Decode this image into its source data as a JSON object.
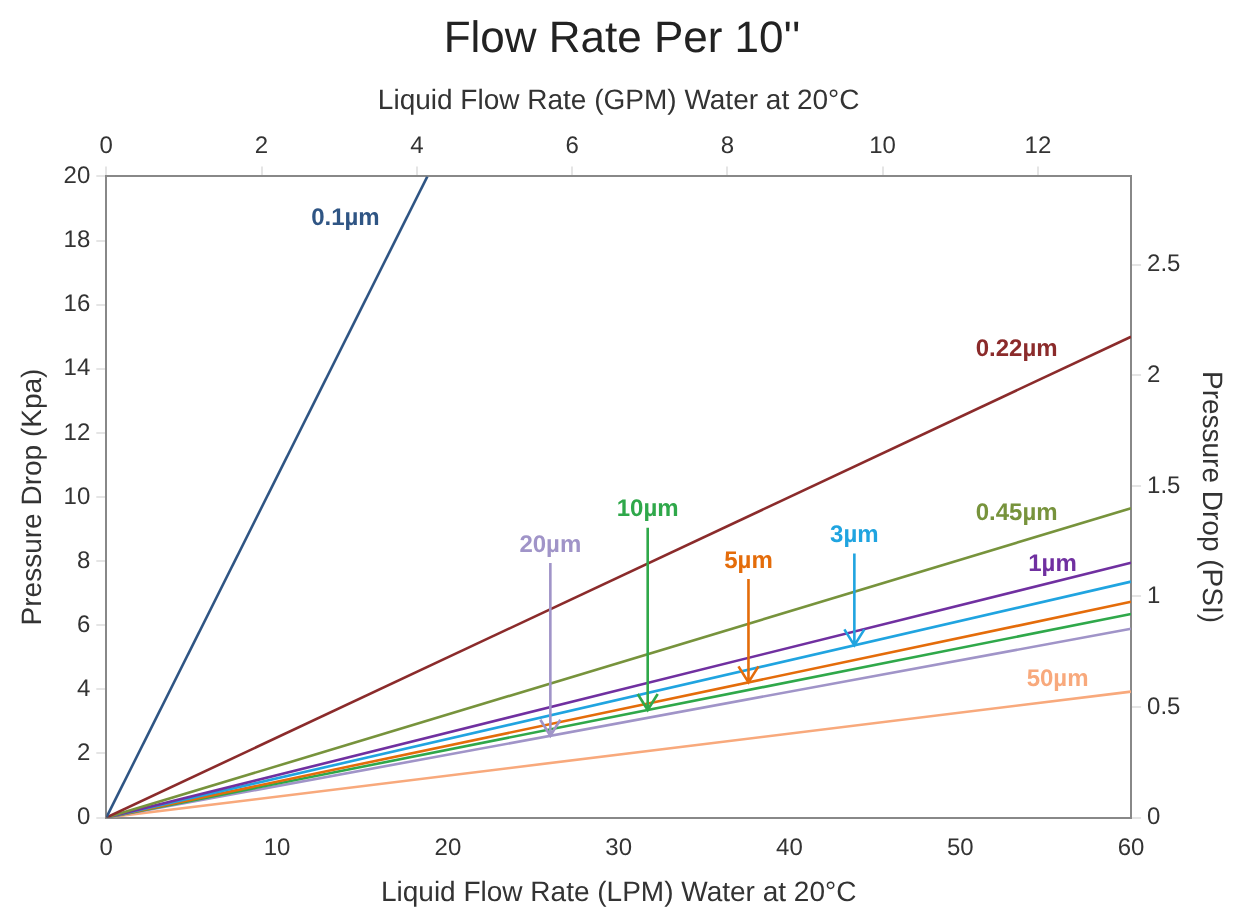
{
  "chart_data": {
    "type": "line",
    "title": "Flow Rate Per 10''",
    "xlabel": "Liquid Flow Rate (LPM) Water at 20°C",
    "x2label": "Liquid Flow Rate (GPM) Water at 20°C",
    "ylabel": "Pressure Drop (Kpa)",
    "y2label": "Pressure Drop (PSI)",
    "xlim": [
      0,
      60
    ],
    "xticks": [
      0,
      10,
      20,
      30,
      40,
      50,
      60
    ],
    "x2lim": [
      0,
      13.2
    ],
    "x2ticks": [
      0,
      2,
      4,
      6,
      8,
      10,
      12
    ],
    "ylim": [
      0,
      20
    ],
    "yticks": [
      0,
      2,
      4,
      6,
      8,
      10,
      12,
      14,
      16,
      18,
      20
    ],
    "y2lim": [
      0,
      2.9
    ],
    "y2ticks": [
      0,
      0.5,
      1,
      1.5,
      2,
      2.5
    ],
    "grid": false,
    "legend": false,
    "marker": "none",
    "line_style": "solid",
    "series": [
      {
        "name": "0.1µm",
        "color": "#2f5584",
        "x": [
          0,
          18.8
        ],
        "values": [
          0,
          20
        ]
      },
      {
        "name": "0.22µm",
        "color": "#8b2b2b",
        "x": [
          0,
          60
        ],
        "values": [
          0,
          15
        ]
      },
      {
        "name": "0.45µm",
        "color": "#77933c",
        "x": [
          0,
          60
        ],
        "values": [
          0,
          9.65
        ]
      },
      {
        "name": "1µm",
        "color": "#7030a0",
        "x": [
          0,
          60
        ],
        "values": [
          0,
          7.95
        ]
      },
      {
        "name": "3µm",
        "color": "#20a4e0",
        "x": [
          0,
          60
        ],
        "values": [
          0,
          7.36
        ]
      },
      {
        "name": "5µm",
        "color": "#e46c0a",
        "x": [
          0,
          60
        ],
        "values": [
          0,
          6.73
        ]
      },
      {
        "name": "10µm",
        "color": "#2fa84a",
        "x": [
          0,
          60
        ],
        "values": [
          0,
          6.35
        ]
      },
      {
        "name": "20µm",
        "color": "#a094c8",
        "x": [
          0,
          60
        ],
        "values": [
          0,
          5.89
        ]
      },
      {
        "name": "50µm",
        "color": "#f8a97c",
        "x": [
          0,
          60
        ],
        "values": [
          0,
          3.93
        ]
      }
    ]
  }
}
